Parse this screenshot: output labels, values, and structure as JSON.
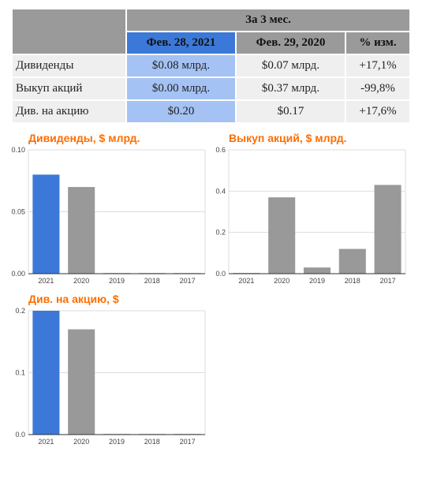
{
  "table": {
    "period_header": "За 3 мес.",
    "col_current": "Фев. 28, 2021",
    "col_previous": "Фев. 29, 2020",
    "col_change": "% изм.",
    "rows": [
      {
        "label": "Дивиденды",
        "current": "$0.08 млрд.",
        "previous": "$0.07 млрд.",
        "change": "+17,1%"
      },
      {
        "label": "Выкуп акций",
        "current": "$0.00 млрд.",
        "previous": "$0.37 млрд.",
        "change": "-99,8%"
      },
      {
        "label": "Див. на акцию",
        "current": "$0.20",
        "previous": "$0.17",
        "change": "+17,6%"
      }
    ]
  },
  "colors": {
    "highlight_bar": "#3c78d8",
    "bar": "#999999",
    "title": "#ff6d01",
    "gridline": "#dddddd",
    "axis": "#333333"
  },
  "chart_data": [
    {
      "type": "bar",
      "title": "Дивиденды, $ млрд.",
      "categories": [
        "2021",
        "2020",
        "2019",
        "2018",
        "2017"
      ],
      "values": [
        0.08,
        0.07,
        0.0,
        0.0,
        0.0
      ],
      "ylim": [
        0,
        0.1
      ],
      "yticks": [
        0,
        0.05,
        0.1
      ],
      "ytick_labels": [
        "0.00",
        "0.05",
        "0.10"
      ],
      "highlight_index": 0,
      "grid": true
    },
    {
      "type": "bar",
      "title": "Выкуп акций, $ млрд.",
      "categories": [
        "2021",
        "2020",
        "2019",
        "2018",
        "2017"
      ],
      "values": [
        0.0,
        0.37,
        0.03,
        0.12,
        0.43
      ],
      "ylim": [
        0,
        0.6
      ],
      "yticks": [
        0,
        0.2,
        0.4,
        0.6
      ],
      "ytick_labels": [
        "0.0",
        "0.2",
        "0.4",
        "0.6"
      ],
      "highlight_index": 0,
      "grid": true
    },
    {
      "type": "bar",
      "title": "Див. на акцию, $",
      "categories": [
        "2021",
        "2020",
        "2019",
        "2018",
        "2017"
      ],
      "values": [
        0.2,
        0.17,
        0.0,
        0.0,
        0.0
      ],
      "ylim": [
        0,
        0.2
      ],
      "yticks": [
        0,
        0.1,
        0.2
      ],
      "ytick_labels": [
        "0.0",
        "0.1",
        "0.2"
      ],
      "highlight_index": 0,
      "grid": true
    }
  ]
}
